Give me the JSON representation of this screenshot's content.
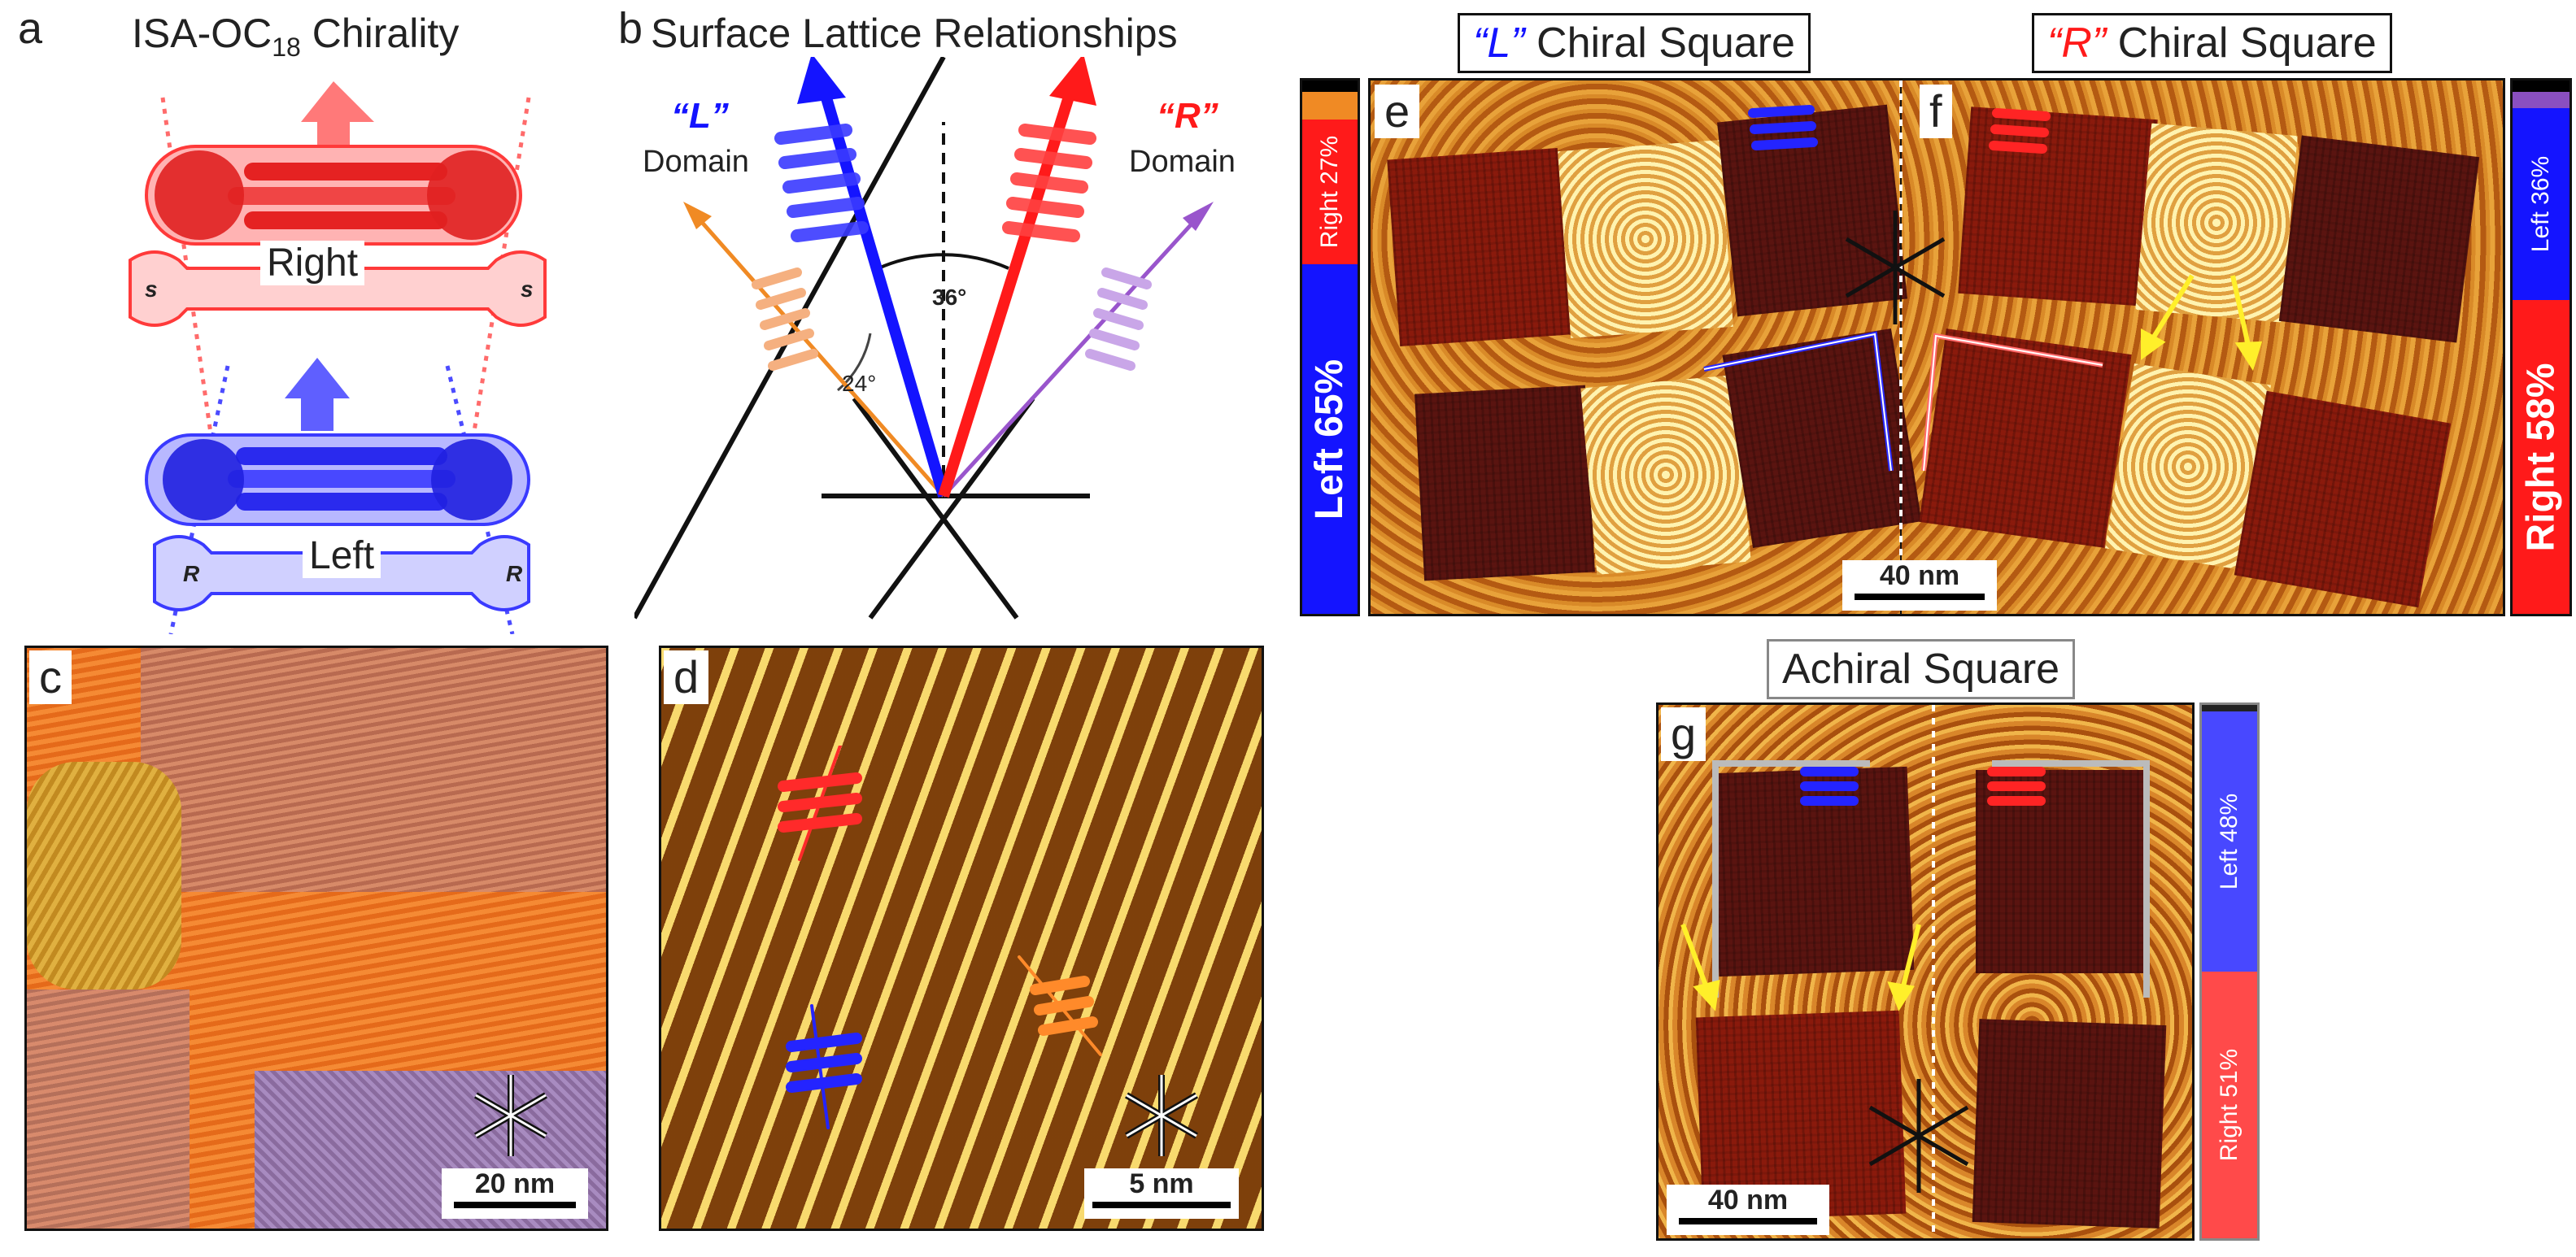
{
  "panels": {
    "a": {
      "letter": "a",
      "title_main": "ISA-OC",
      "title_sub": "18",
      "title_end": " Chirality",
      "top_label": "Right",
      "top_stereo": "s",
      "bottom_label": "Left",
      "bottom_stereo": "R"
    },
    "b": {
      "letter": "b",
      "title": "Surface Lattice Relationships",
      "left_quote_open": "“",
      "left_letter": "L",
      "left_quote_close": "”",
      "left_domain": "Domain",
      "right_quote_open": "“",
      "right_letter": "R",
      "right_quote_close": "”",
      "right_domain": "Domain",
      "angle_small": "24°",
      "angle_large": "36°"
    },
    "c": {
      "letter": "c",
      "scale": "20 nm"
    },
    "d": {
      "letter": "d",
      "scale": "5 nm"
    },
    "e": {
      "letter": "e",
      "header_q1": "“",
      "header_letter": "L",
      "header_q2": "”",
      "header_rest": " Chiral Square",
      "bar_top": "Right 27%",
      "bar_bottom": "Left 65%"
    },
    "f": {
      "letter": "f",
      "header_q1": "“",
      "header_letter": "R",
      "header_q2": "”",
      "header_rest": " Chiral Square",
      "bar_top": "Left 36%",
      "bar_bottom": "Right 58%"
    },
    "ef_scale": "40 nm",
    "g": {
      "letter": "g",
      "header": "Achiral Square",
      "scale": "40 nm",
      "bar_top": "Left 48%",
      "bar_bottom": "Right 51%"
    }
  },
  "colors": {
    "red": "#ff1a1a",
    "blue": "#1414ff",
    "orange": "#f08a24",
    "purple": "#8a4fc0"
  }
}
